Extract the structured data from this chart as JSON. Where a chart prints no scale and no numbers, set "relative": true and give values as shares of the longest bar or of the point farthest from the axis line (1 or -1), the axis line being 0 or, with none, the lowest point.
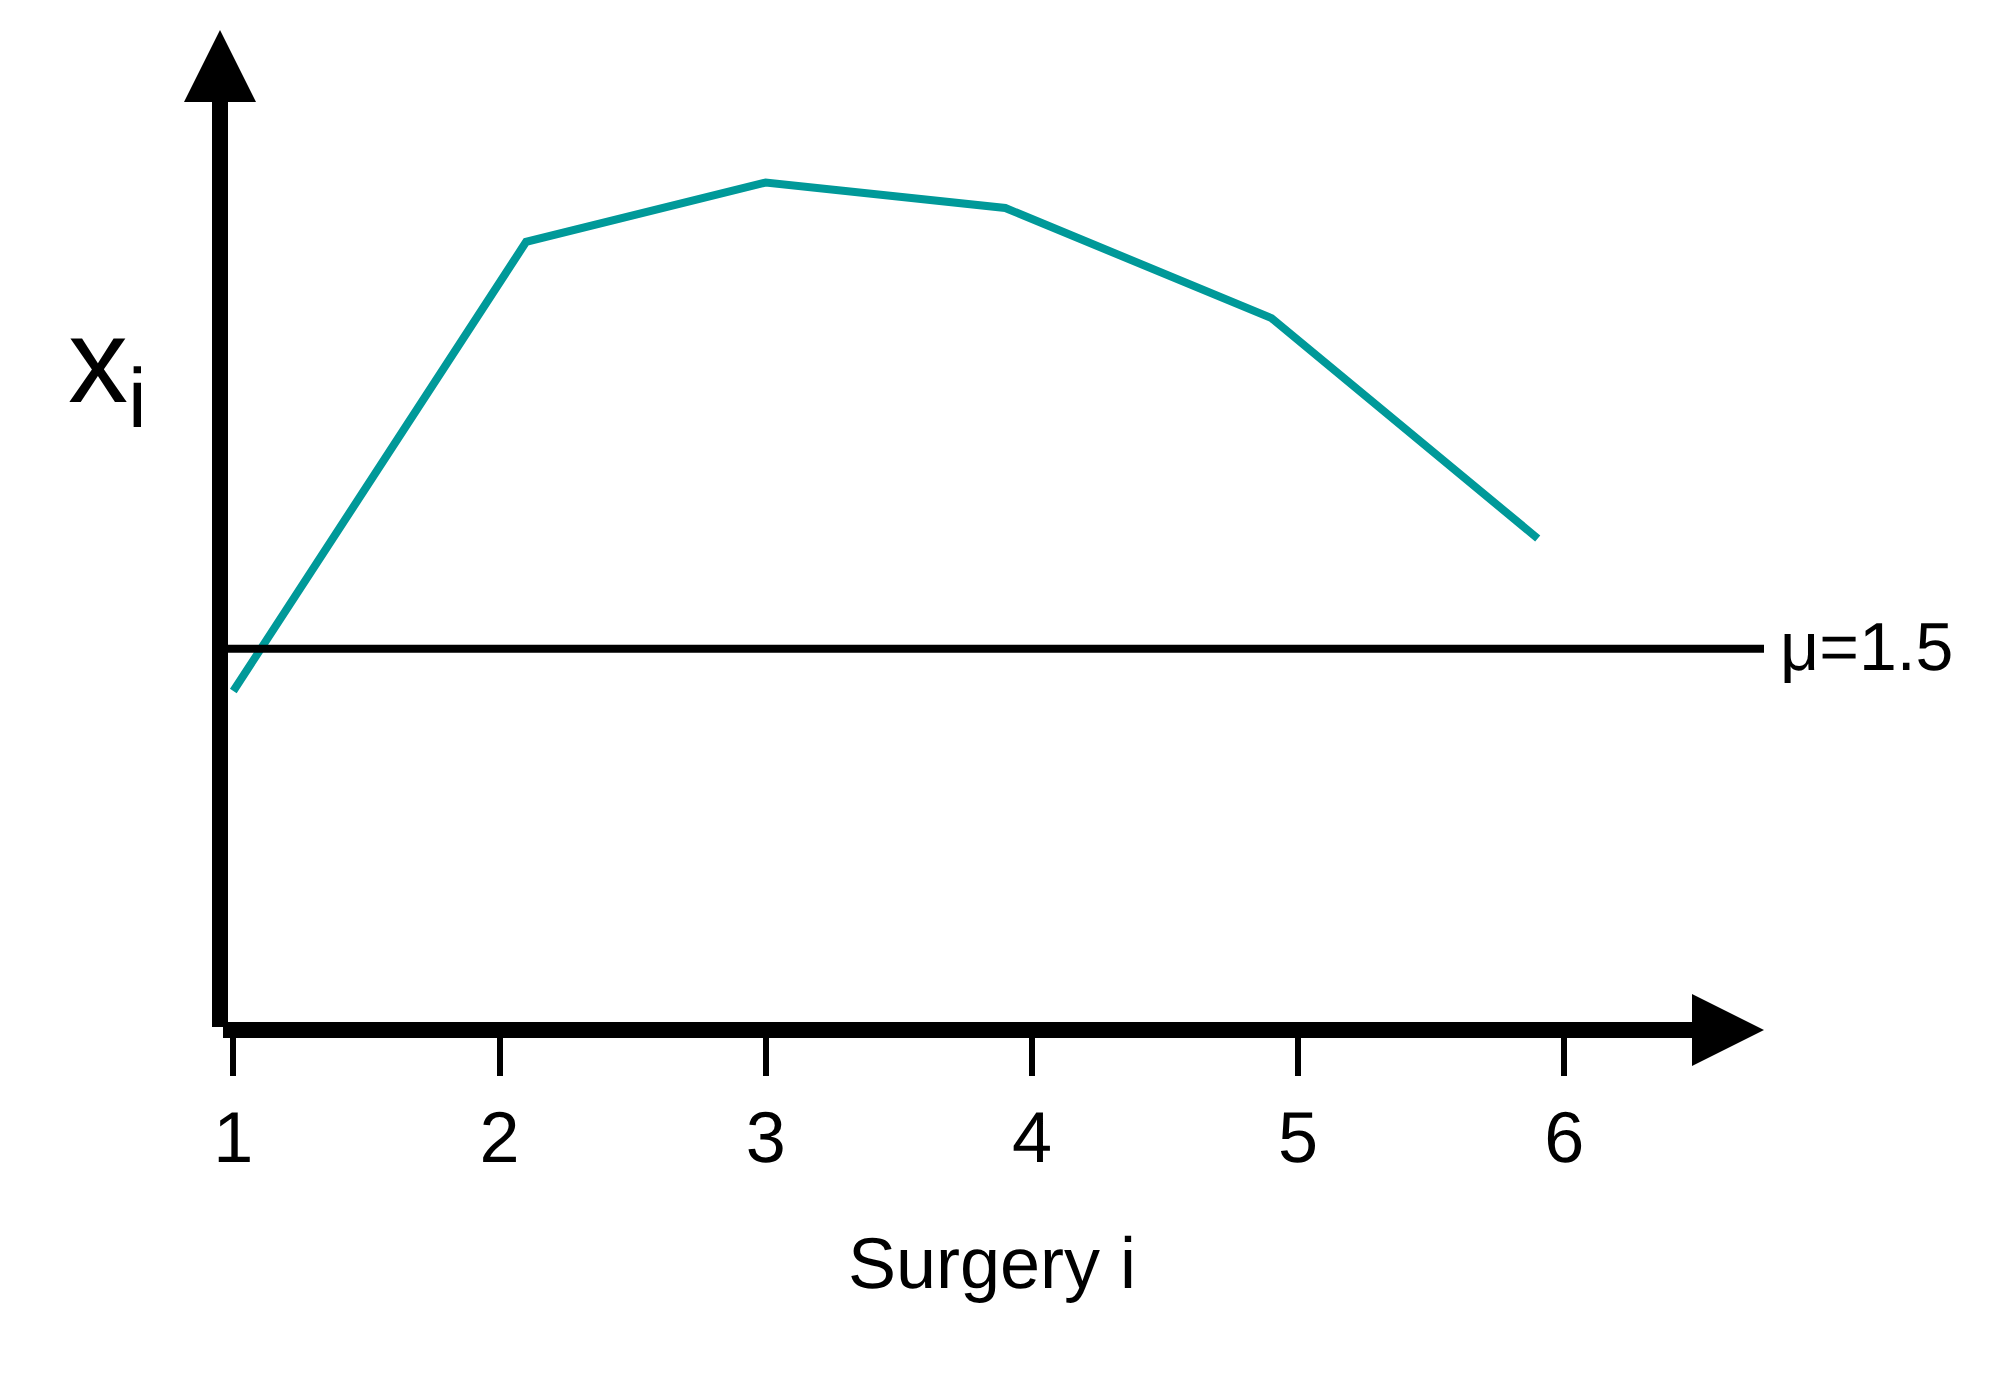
{
  "chart_data": {
    "type": "line",
    "relative": true,
    "xlabel": "Surgery i",
    "ylabel": "x$_{i}$",
    "x": [
      1.0,
      2.1,
      3.0,
      3.9,
      4.9,
      5.9
    ],
    "series": [
      {
        "color": "#009999",
        "values": [
          0.4,
          0.93,
          1.0,
          0.97,
          0.84,
          0.58
        ]
      }
    ],
    "xlim": [
      0.95,
      6.75
    ],
    "xticks": [
      1,
      2,
      3,
      4,
      5,
      6
    ],
    "ref_lines": [
      {
        "axis": "y",
        "value": 0.45,
        "color": "#000000",
        "line_style": "solid"
      }
    ],
    "annotations": [
      "μ=1.5"
    ],
    "grid": false,
    "legend": false,
    "marker": "none",
    "line_style": "solid",
    "tick_labels": "x"
  }
}
